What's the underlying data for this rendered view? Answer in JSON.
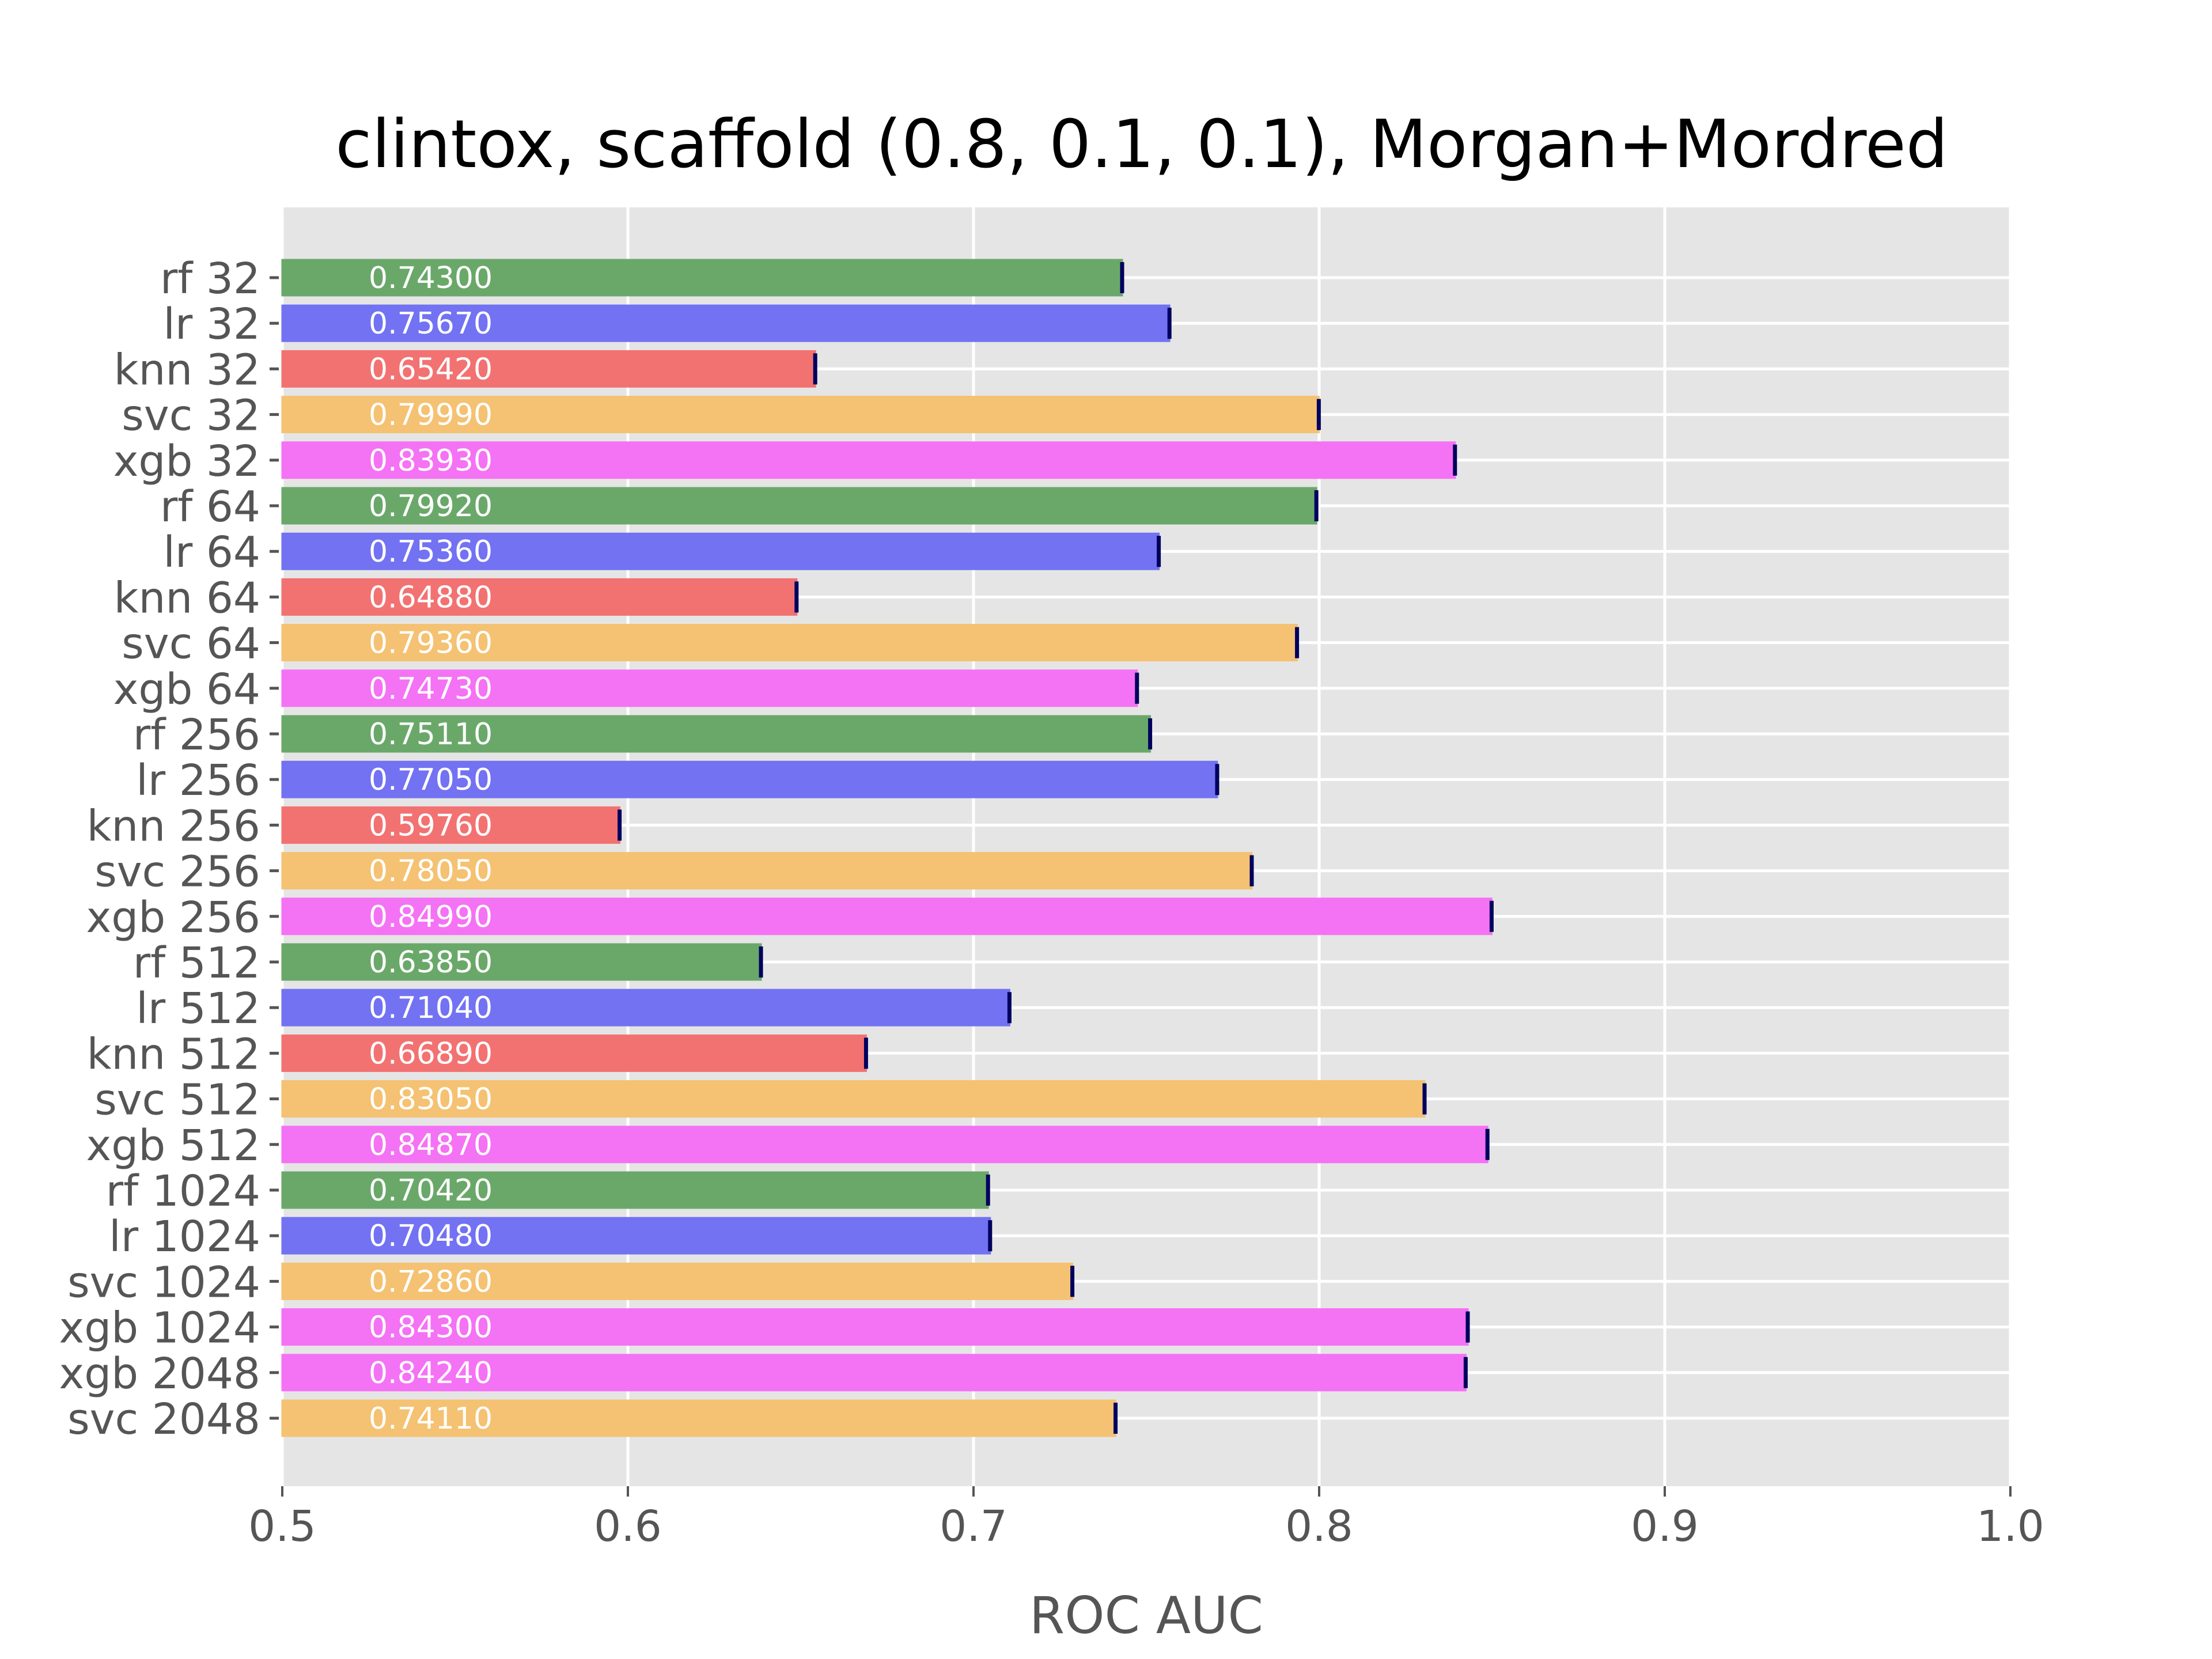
{
  "chart_data": {
    "type": "bar",
    "orientation": "horizontal",
    "title": "clintox, scaffold (0.8, 0.1, 0.1), Morgan+Mordred",
    "xlabel": "ROC AUC",
    "ylabel": "",
    "xlim": [
      0.5,
      1.0
    ],
    "xticks": [
      "0.5",
      "0.6",
      "0.7",
      "0.8",
      "0.9",
      "1.0"
    ],
    "grid": true,
    "legend": "none",
    "colors": {
      "rf": "#6aa86a",
      "lr": "#7272f2",
      "knn": "#f27272",
      "svc": "#f4c272",
      "xgb": "#f472f4",
      "error": "#00005e",
      "background": "#e5e5e5"
    },
    "bars": [
      {
        "label": "rf 32",
        "model": "rf",
        "value": 0.743,
        "display": "0.74300"
      },
      {
        "label": "lr 32",
        "model": "lr",
        "value": 0.7567,
        "display": "0.75670"
      },
      {
        "label": "knn 32",
        "model": "knn",
        "value": 0.6542,
        "display": "0.65420"
      },
      {
        "label": "svc 32",
        "model": "svc",
        "value": 0.7999,
        "display": "0.79990"
      },
      {
        "label": "xgb 32",
        "model": "xgb",
        "value": 0.8393,
        "display": "0.83930"
      },
      {
        "label": "rf 64",
        "model": "rf",
        "value": 0.7992,
        "display": "0.79920"
      },
      {
        "label": "lr 64",
        "model": "lr",
        "value": 0.7536,
        "display": "0.75360"
      },
      {
        "label": "knn 64",
        "model": "knn",
        "value": 0.6488,
        "display": "0.64880"
      },
      {
        "label": "svc 64",
        "model": "svc",
        "value": 0.7936,
        "display": "0.79360"
      },
      {
        "label": "xgb 64",
        "model": "xgb",
        "value": 0.7473,
        "display": "0.74730"
      },
      {
        "label": "rf 256",
        "model": "rf",
        "value": 0.7511,
        "display": "0.75110"
      },
      {
        "label": "lr 256",
        "model": "lr",
        "value": 0.7705,
        "display": "0.77050"
      },
      {
        "label": "knn 256",
        "model": "knn",
        "value": 0.5976,
        "display": "0.59760"
      },
      {
        "label": "svc 256",
        "model": "svc",
        "value": 0.7805,
        "display": "0.78050"
      },
      {
        "label": "xgb 256",
        "model": "xgb",
        "value": 0.8499,
        "display": "0.84990"
      },
      {
        "label": "rf 512",
        "model": "rf",
        "value": 0.6385,
        "display": "0.63850"
      },
      {
        "label": "lr 512",
        "model": "lr",
        "value": 0.7104,
        "display": "0.71040"
      },
      {
        "label": "knn 512",
        "model": "knn",
        "value": 0.6689,
        "display": "0.66890"
      },
      {
        "label": "svc 512",
        "model": "svc",
        "value": 0.8305,
        "display": "0.83050"
      },
      {
        "label": "xgb 512",
        "model": "xgb",
        "value": 0.8487,
        "display": "0.84870"
      },
      {
        "label": "rf 1024",
        "model": "rf",
        "value": 0.7042,
        "display": "0.70420"
      },
      {
        "label": "lr 1024",
        "model": "lr",
        "value": 0.7048,
        "display": "0.70480"
      },
      {
        "label": "svc 1024",
        "model": "svc",
        "value": 0.7286,
        "display": "0.72860"
      },
      {
        "label": "xgb 1024",
        "model": "xgb",
        "value": 0.843,
        "display": "0.84300"
      },
      {
        "label": "xgb 2048",
        "model": "xgb",
        "value": 0.8424,
        "display": "0.84240"
      },
      {
        "label": "svc 2048",
        "model": "svc",
        "value": 0.7411,
        "display": "0.74110"
      }
    ]
  }
}
